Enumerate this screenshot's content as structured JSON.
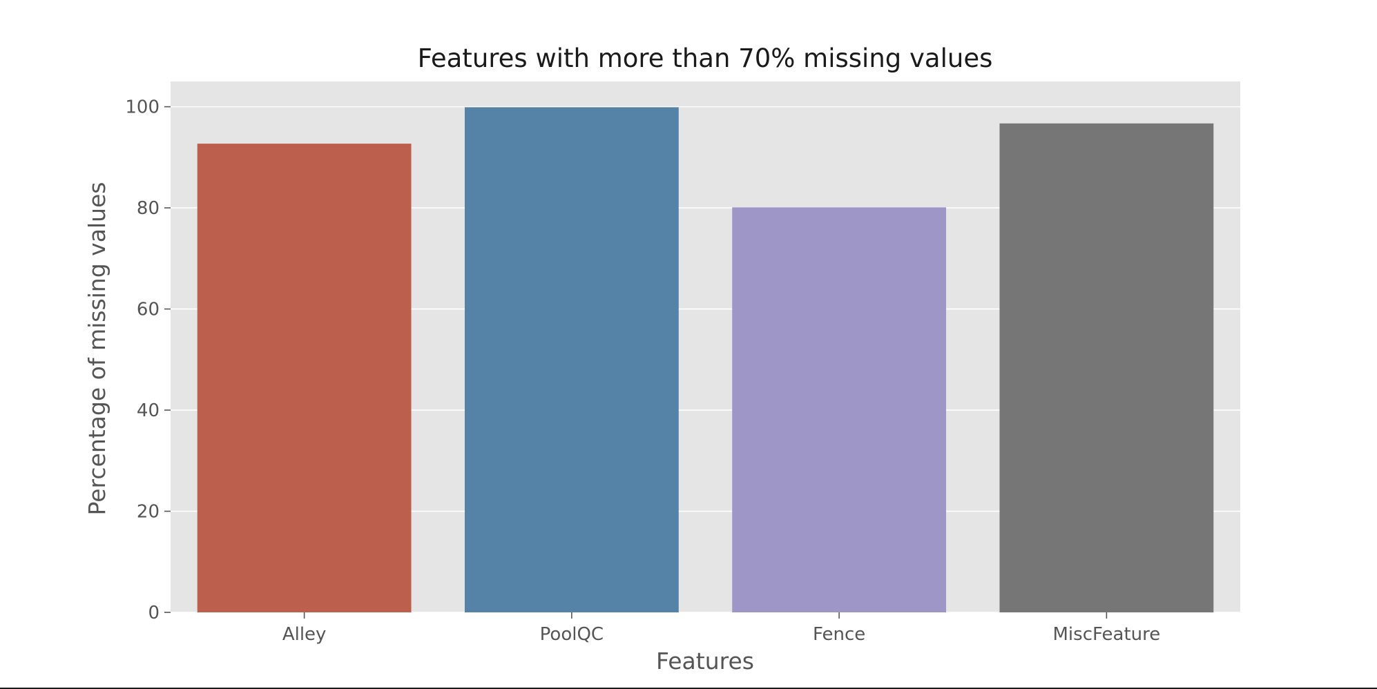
{
  "chart_data": {
    "type": "bar",
    "title": "Features with more than 70% missing values",
    "xlabel": "Features",
    "ylabel": "Percentage of missing values",
    "categories": [
      "Alley",
      "PoolQC",
      "Fence",
      "MiscFeature"
    ],
    "values": [
      92.7,
      99.9,
      80.1,
      96.7
    ],
    "colors": [
      "#bc5f4c",
      "#5583a8",
      "#9d96c7",
      "#767676"
    ],
    "ylim": [
      0,
      105
    ],
    "yticks": [
      0,
      20,
      40,
      60,
      80,
      100
    ],
    "grid": true,
    "legend": "none",
    "style": {
      "plot_background": "#e5e5e5",
      "grid_color": "#ffffff"
    }
  }
}
